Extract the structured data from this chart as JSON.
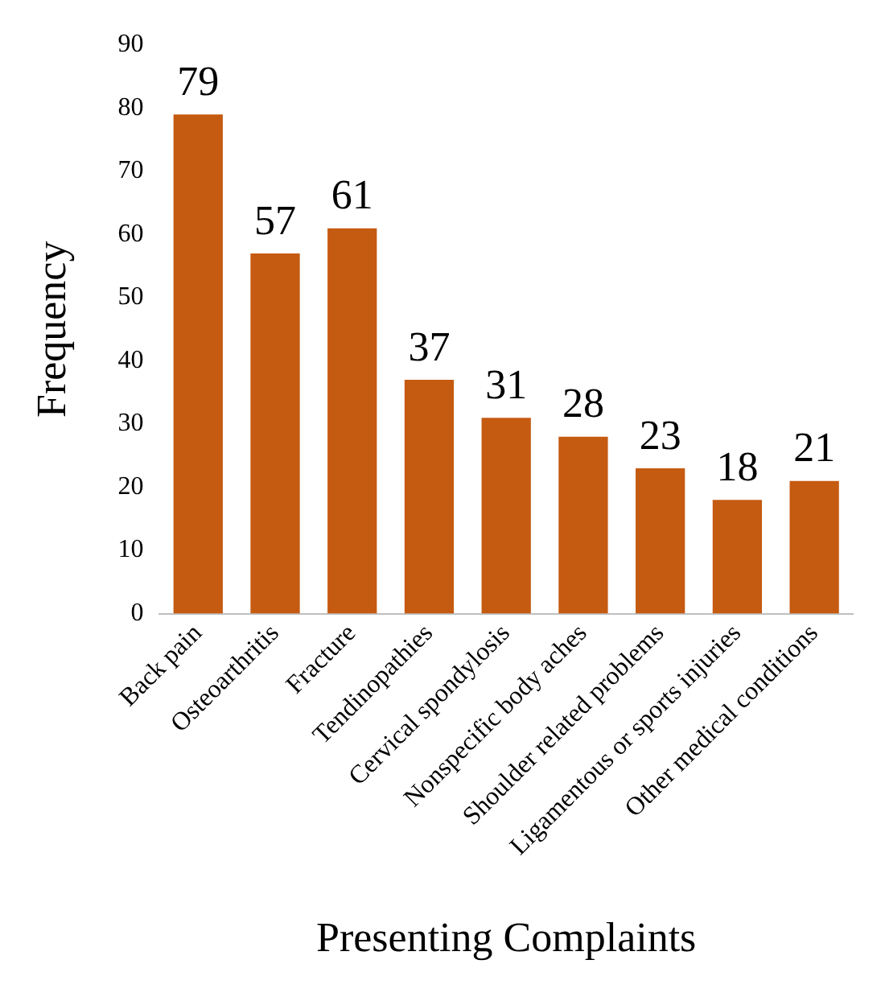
{
  "chart_data": {
    "type": "bar",
    "xlabel": "Presenting Complaints",
    "ylabel": "Frequency",
    "categories": [
      "Back pain",
      "Osteoarthritis",
      "Fracture",
      "Tendinopathies",
      "Cervical spondylosis",
      "Nonspecific body aches",
      "Shoulder related problems",
      "Ligamentous or sports injuries",
      "Other medical conditions"
    ],
    "values": [
      79,
      57,
      61,
      37,
      31,
      28,
      23,
      18,
      21
    ],
    "color": "#c55a11",
    "ylim": [
      0,
      90
    ],
    "yticks": [
      0,
      10,
      20,
      30,
      40,
      50,
      60,
      70,
      80,
      90
    ],
    "grid": false,
    "legend": false,
    "data_labels": true
  }
}
